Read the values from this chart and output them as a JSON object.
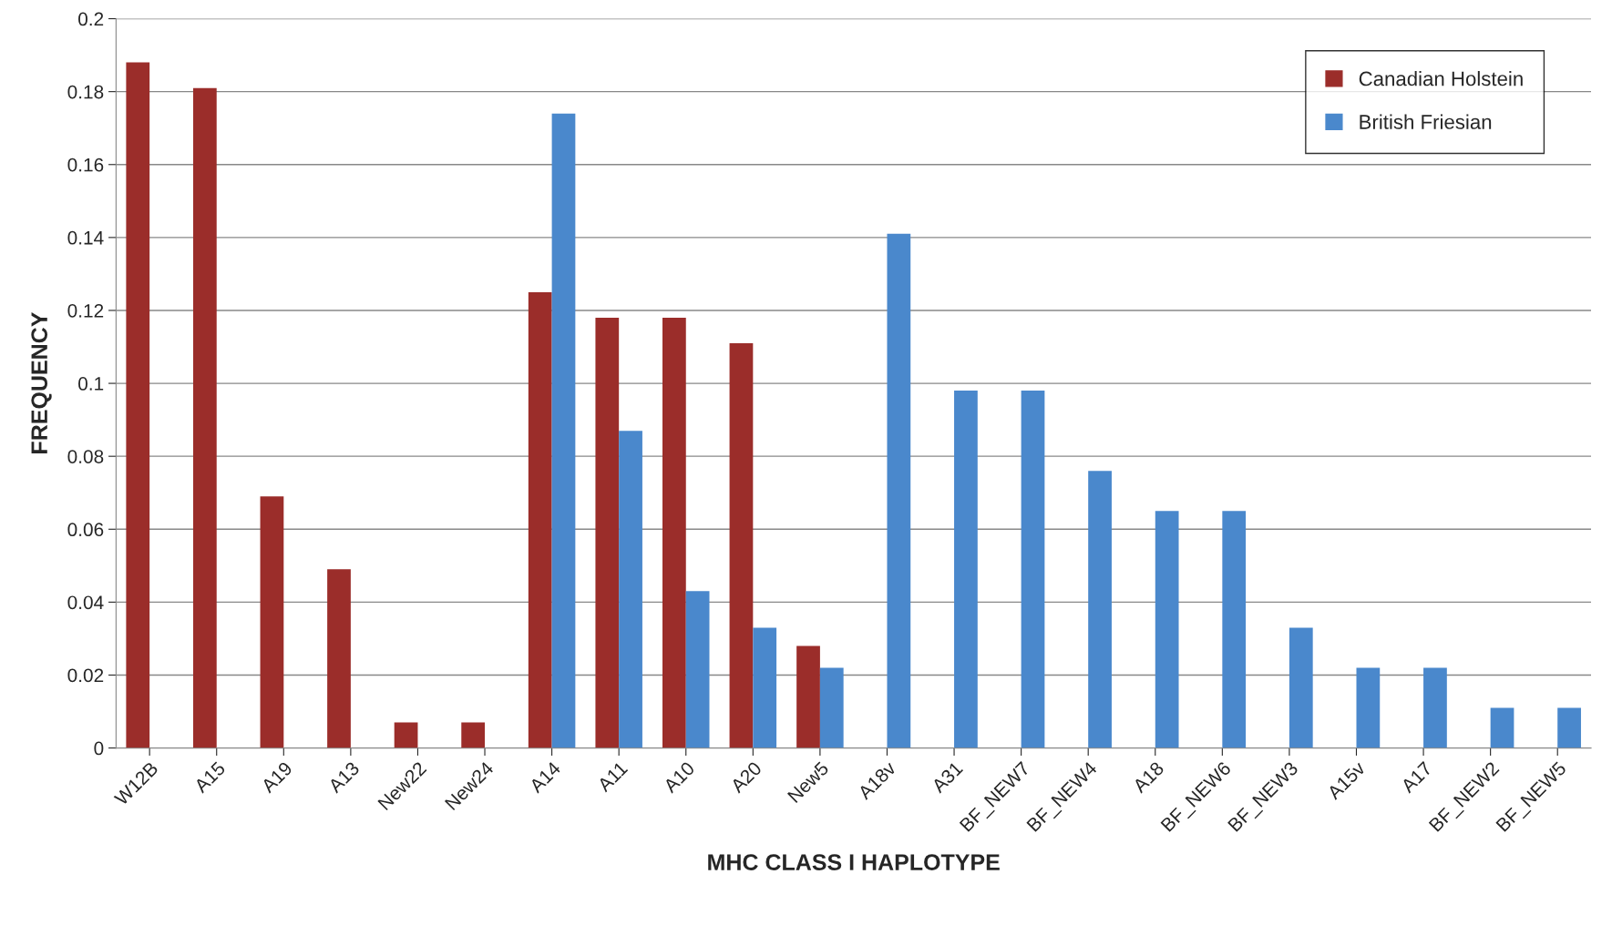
{
  "chart_data": {
    "type": "bar",
    "xlabel": "MHC CLASS I HAPLOTYPE",
    "ylabel": "FREQUENCY",
    "categories": [
      "W12B",
      "A15",
      "A19",
      "A13",
      "New22",
      "New24",
      "A14",
      "A11",
      "A10",
      "A20",
      "New5",
      "A18v",
      "A31",
      "BF_NEW7",
      "BF_NEW4",
      "A18",
      "BF_NEW6",
      "BF_NEW3",
      "A15v",
      "A17",
      "BF_NEW2",
      "BF_NEW5"
    ],
    "series": [
      {
        "name": "Canadian Holstein",
        "color": "#9b2d2a",
        "values": [
          0.188,
          0.181,
          0.069,
          0.049,
          0.007,
          0.007,
          0.125,
          0.118,
          0.118,
          0.111,
          0.028,
          null,
          null,
          null,
          null,
          null,
          null,
          null,
          null,
          null,
          null,
          null
        ]
      },
      {
        "name": "British Friesian",
        "color": "#4a88cc",
        "values": [
          null,
          null,
          null,
          null,
          null,
          null,
          0.174,
          0.087,
          0.043,
          0.033,
          0.022,
          0.141,
          0.098,
          0.098,
          0.076,
          0.065,
          0.065,
          0.033,
          0.022,
          0.022,
          0.011,
          0.011
        ]
      }
    ],
    "ylim": [
      0,
      0.2
    ],
    "yticks": [
      {
        "value": 0,
        "label": "0"
      },
      0.02,
      0.04,
      0.06,
      0.08,
      {
        "value": 0.1,
        "label": "0.1"
      },
      0.12,
      0.14,
      0.16,
      0.18,
      {
        "value": 0.2,
        "label": "0.2"
      }
    ],
    "grid": "y",
    "legend": "top right"
  }
}
